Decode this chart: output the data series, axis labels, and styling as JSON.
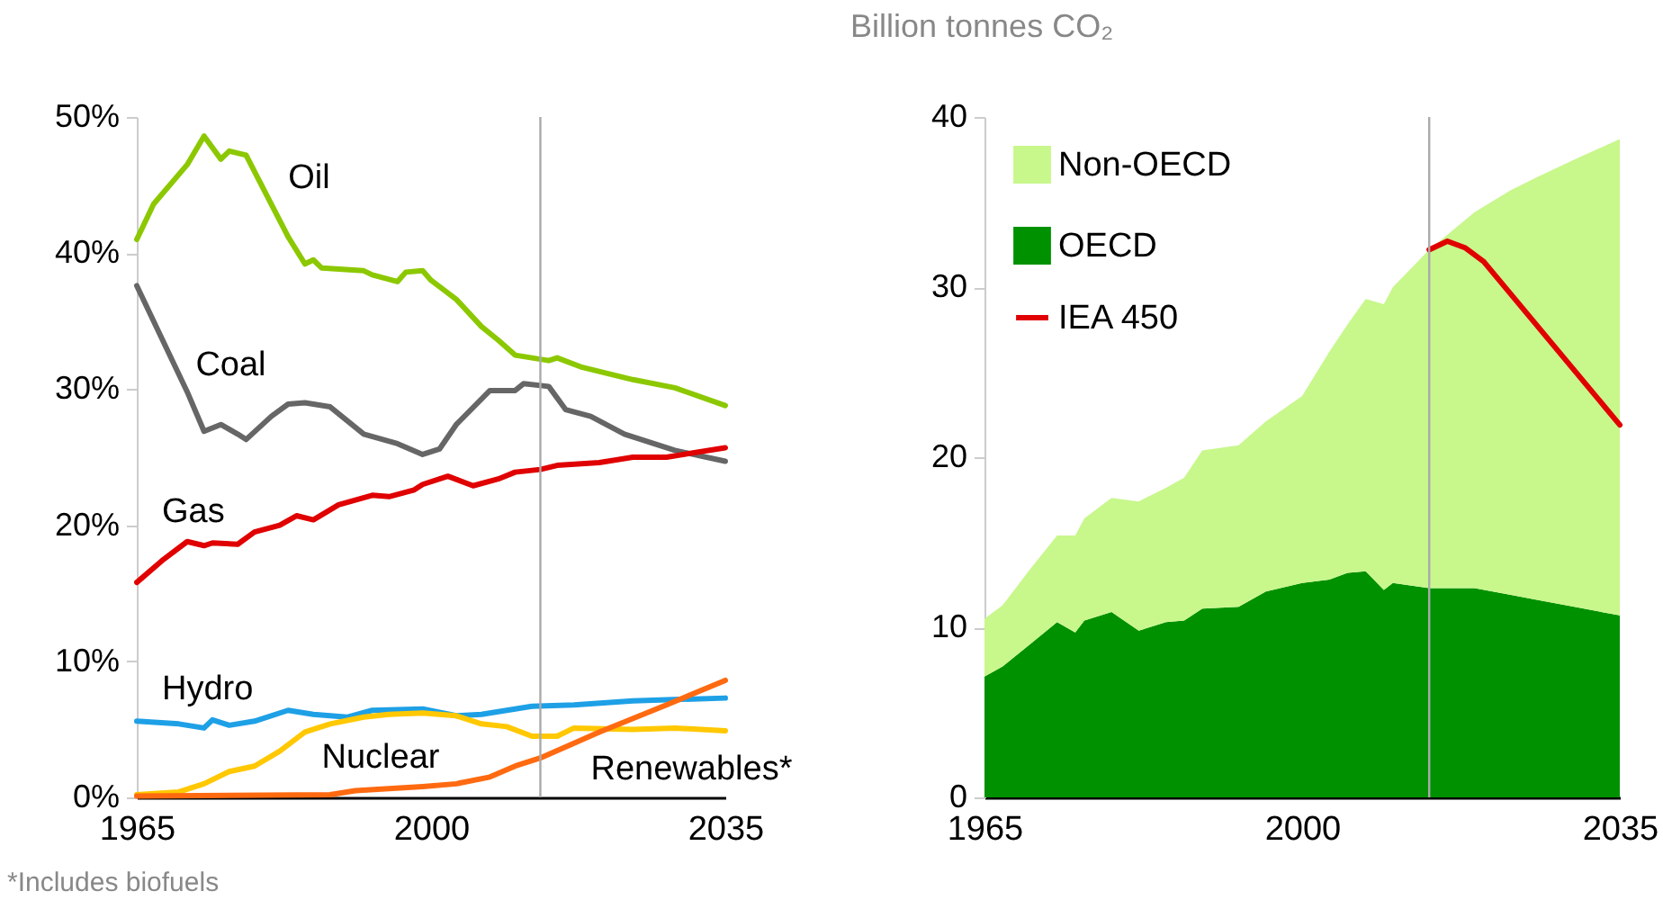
{
  "chart_data": [
    {
      "type": "line",
      "annotations": [
        "*Includes biofuels"
      ],
      "xlim": [
        1965,
        2035
      ],
      "xticks": [
        1965,
        2000,
        2035
      ],
      "ylim": [
        0,
        50
      ],
      "yticks": [
        {
          "value": 0,
          "label": "0%"
        },
        {
          "value": 10,
          "label": "10%"
        },
        {
          "value": 20,
          "label": "20%"
        },
        {
          "value": 30,
          "label": "30%"
        },
        {
          "value": 40,
          "label": "40%"
        },
        {
          "value": 50,
          "label": "50%"
        }
      ],
      "ref_lines": [
        {
          "axis": "x",
          "value": 2013,
          "color": "#aaaaaa"
        }
      ],
      "series": [
        {
          "name": "Oil",
          "color": "#8cc800",
          "x": [
            1965,
            1967,
            1971,
            1973,
            1975,
            1976,
            1978,
            1981,
            1983,
            1985,
            1986,
            1987,
            1992,
            1993,
            1996,
            1997,
            1999,
            2000,
            2003,
            2006,
            2008,
            2010,
            2014,
            2015,
            2018,
            2024,
            2029,
            2035
          ],
          "values": [
            41.0,
            43.6,
            46.5,
            48.6,
            46.9,
            47.5,
            47.2,
            43.6,
            41.2,
            39.2,
            39.5,
            38.9,
            38.7,
            38.4,
            37.9,
            38.6,
            38.7,
            38.0,
            36.6,
            34.6,
            33.6,
            32.5,
            32.1,
            32.3,
            31.6,
            30.7,
            30.1,
            28.8
          ]
        },
        {
          "name": "Coal",
          "color": "#666666",
          "x": [
            1965,
            1968,
            1971,
            1973,
            1975,
            1977,
            1978,
            1981,
            1983,
            1985,
            1988,
            1992,
            1996,
            1999,
            2001,
            2003,
            2007,
            2010,
            2011,
            2014,
            2016,
            2019,
            2023,
            2029,
            2035
          ],
          "values": [
            37.6,
            33.7,
            29.8,
            26.9,
            27.4,
            26.7,
            26.3,
            28.0,
            28.9,
            29.0,
            28.7,
            26.7,
            26.0,
            25.2,
            25.6,
            27.4,
            29.9,
            29.9,
            30.4,
            30.2,
            28.5,
            28.0,
            26.7,
            25.5,
            24.7
          ]
        },
        {
          "name": "Gas",
          "color": "#e00000",
          "x": [
            1965,
            1968,
            1971,
            1973,
            1974,
            1977,
            1979,
            1982,
            1984,
            1986,
            1989,
            1993,
            1995,
            1998,
            1999,
            2002,
            2005,
            2008,
            2010,
            2013,
            2015,
            2020,
            2024,
            2028,
            2035
          ],
          "values": [
            15.8,
            17.4,
            18.8,
            18.5,
            18.7,
            18.6,
            19.5,
            20.0,
            20.7,
            20.4,
            21.5,
            22.2,
            22.1,
            22.6,
            23.0,
            23.6,
            22.9,
            23.4,
            23.9,
            24.1,
            24.4,
            24.6,
            25.0,
            25.0,
            25.7
          ]
        },
        {
          "name": "Hydro",
          "color": "#1ea0e6",
          "x": [
            1965,
            1970,
            1973,
            1974,
            1976,
            1979,
            1983,
            1986,
            1990,
            1993,
            1999,
            2003,
            2006,
            2012,
            2017,
            2024,
            2035
          ],
          "values": [
            5.6,
            5.4,
            5.1,
            5.7,
            5.3,
            5.6,
            6.4,
            6.1,
            5.9,
            6.4,
            6.5,
            6.0,
            6.1,
            6.7,
            6.8,
            7.1,
            7.3
          ]
        },
        {
          "name": "Nuclear",
          "color": "#ffc800",
          "x": [
            1965,
            1970,
            1973,
            1976,
            1979,
            1982,
            1985,
            1988,
            1992,
            1995,
            1999,
            2003,
            2006,
            2009,
            2012,
            2015,
            2017,
            2024,
            2029,
            2035
          ],
          "values": [
            0.2,
            0.4,
            1.0,
            1.9,
            2.3,
            3.4,
            4.8,
            5.4,
            5.9,
            6.1,
            6.2,
            6.0,
            5.4,
            5.2,
            4.5,
            4.5,
            5.1,
            5.0,
            5.1,
            4.9
          ]
        },
        {
          "name": "Renewables*",
          "color": "#ff6a10",
          "x": [
            1965,
            1988,
            1991,
            1999,
            2003,
            2007,
            2010,
            2013,
            2020,
            2028,
            2035
          ],
          "values": [
            0.1,
            0.2,
            0.5,
            0.8,
            1.0,
            1.5,
            2.3,
            2.9,
            4.8,
            6.8,
            8.6
          ]
        }
      ]
    },
    {
      "type": "area",
      "stacked": true,
      "ylabel": "Billion tonnes CO₂",
      "legend": "top left",
      "xlim": [
        1965,
        2035
      ],
      "xticks": [
        1965,
        2000,
        2035
      ],
      "ylim": [
        0,
        40
      ],
      "yticks": [
        0,
        10,
        20,
        30,
        40
      ],
      "ref_lines": [
        {
          "axis": "x",
          "value": 2014,
          "color": "#aaaaaa"
        }
      ],
      "x": [
        1965,
        1967,
        1970,
        1973,
        1975,
        1976,
        1979,
        1982,
        1985,
        1987,
        1989,
        1993,
        1996,
        2000,
        2003,
        2005,
        2007,
        2009,
        2010,
        2014,
        2019,
        2023,
        2026,
        2030,
        2035
      ],
      "series": [
        {
          "name": "OECD",
          "color": "#009100",
          "values": [
            7.1,
            7.7,
            9.0,
            10.3,
            9.7,
            10.4,
            10.9,
            9.8,
            10.3,
            10.4,
            11.1,
            11.2,
            12.1,
            12.6,
            12.8,
            13.2,
            13.3,
            12.2,
            12.6,
            12.3,
            12.3,
            11.9,
            11.6,
            11.2,
            10.7
          ]
        },
        {
          "name": "Non-OECD",
          "color": "#c8f78c",
          "values": [
            3.4,
            3.6,
            4.4,
            5.1,
            5.7,
            6.0,
            6.7,
            7.6,
            7.9,
            8.4,
            9.3,
            9.5,
            10.0,
            11.0,
            13.4,
            14.6,
            16.0,
            16.8,
            17.4,
            19.9,
            22.1,
            23.8,
            24.9,
            26.3,
            28.0
          ]
        },
        {
          "name": "IEA 450",
          "type": "line",
          "color": "#e00000",
          "x": [
            2014,
            2016,
            2018,
            2020,
            2035
          ],
          "values": [
            32.2,
            32.7,
            32.3,
            31.5,
            21.9
          ]
        }
      ]
    }
  ]
}
